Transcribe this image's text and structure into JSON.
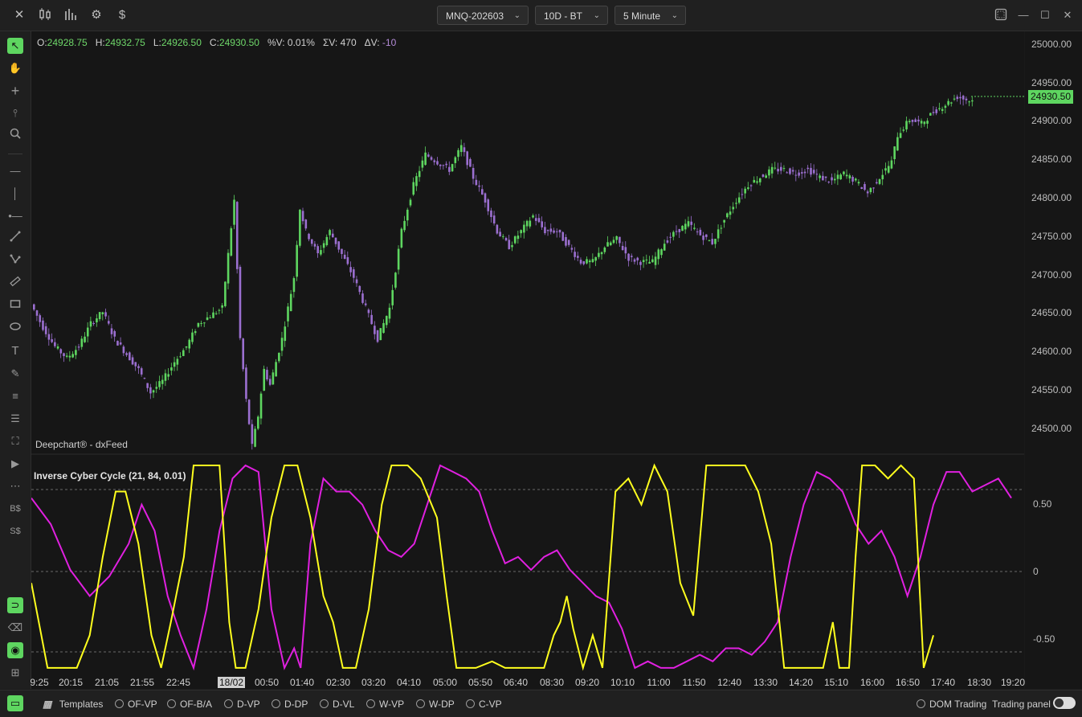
{
  "toolbar": {
    "symbol": "MNQ-202603",
    "period": "10D - BT",
    "interval": "5 Minute"
  },
  "ohlc": {
    "o_label": "O:",
    "o": "24928.75",
    "h_label": "H:",
    "h": "24932.75",
    "l_label": "L:",
    "l": "24926.50",
    "c_label": "C:",
    "c": "24930.50",
    "pv_label": "%V:",
    "pv": "0.01%",
    "sv_label": "ΣV:",
    "sv": "470",
    "dv_label": "ΔV:",
    "dv": "-10"
  },
  "watermark": "Deepchart® - dxFeed",
  "indicator_title": "Inverse Cyber Cycle (21, 84, 0.01)",
  "last_price": "24930.50",
  "price_axis": [
    "25000.00",
    "24950.00",
    "24900.00",
    "24850.00",
    "24800.00",
    "24750.00",
    "24700.00",
    "24650.00",
    "24600.00",
    "24550.00",
    "24500.00"
  ],
  "indicator_axis": [
    "0.50",
    "0",
    "-0.50"
  ],
  "time_axis": [
    "9:25",
    "20:15",
    "21:05",
    "21:55",
    "22:45",
    "18/02",
    "00:50",
    "01:40",
    "02:30",
    "03:20",
    "04:10",
    "05:00",
    "05:50",
    "06:40",
    "08:30",
    "09:20",
    "10:10",
    "11:00",
    "11:50",
    "12:40",
    "13:30",
    "14:20",
    "15:10",
    "16:00",
    "16:50",
    "17:40",
    "18:30",
    "19:20"
  ],
  "bottom": {
    "templates": "Templates",
    "profiles": [
      "OF-VP",
      "OF-B/A",
      "D-VP",
      "D-DP",
      "D-VL",
      "W-VP",
      "W-DP",
      "C-VP"
    ],
    "dom_trading": "DOM Trading",
    "trading_panel": "Trading panel"
  },
  "colors": {
    "up": "#5ed660",
    "down": "#9b6fd0",
    "cycle_yellow": "#ffff1e",
    "cycle_magenta": "#e020e0"
  },
  "sidebar_icons": [
    "cursor-icon",
    "hand-icon",
    "crosshair-icon",
    "magnet-pointer-icon",
    "zoom-icon",
    "horizontal-line-icon",
    "vertical-line-icon",
    "horizontal-ray-icon",
    "trend-line-icon",
    "path-icon",
    "ruler-icon",
    "rectangle-icon",
    "ellipse-icon",
    "text-icon",
    "pencil-icon",
    "fib-icon",
    "levels-icon",
    "volume-tool-icon",
    "arrow-tool-icon",
    "order-tool-icon",
    "price-tag-tool-icon",
    "dollar-tool-icon",
    "magnet-icon",
    "eraser-icon",
    "eye-icon",
    "add-layer-icon"
  ],
  "chart_data": {
    "type": "candlestick",
    "price_ylim": [
      24470,
      25020
    ],
    "indicator_ylim": [
      -0.8,
      0.8
    ],
    "indicator_levels": [
      0.6,
      0,
      -0.6
    ],
    "price_path_keypoints": [
      [
        0,
        24665
      ],
      [
        4,
        24635
      ],
      [
        8,
        24610
      ],
      [
        12,
        24595
      ],
      [
        16,
        24610
      ],
      [
        20,
        24640
      ],
      [
        24,
        24655
      ],
      [
        28,
        24620
      ],
      [
        32,
        24600
      ],
      [
        36,
        24580
      ],
      [
        40,
        24550
      ],
      [
        44,
        24565
      ],
      [
        48,
        24590
      ],
      [
        52,
        24610
      ],
      [
        56,
        24640
      ],
      [
        60,
        24650
      ],
      [
        64,
        24660
      ],
      [
        66,
        24730
      ],
      [
        68,
        24800
      ],
      [
        70,
        24620
      ],
      [
        72,
        24540
      ],
      [
        74,
        24480
      ],
      [
        76,
        24520
      ],
      [
        78,
        24580
      ],
      [
        80,
        24560
      ],
      [
        84,
        24620
      ],
      [
        88,
        24700
      ],
      [
        90,
        24790
      ],
      [
        92,
        24760
      ],
      [
        96,
        24730
      ],
      [
        100,
        24760
      ],
      [
        104,
        24730
      ],
      [
        108,
        24700
      ],
      [
        112,
        24660
      ],
      [
        116,
        24620
      ],
      [
        120,
        24660
      ],
      [
        124,
        24760
      ],
      [
        128,
        24820
      ],
      [
        132,
        24860
      ],
      [
        136,
        24850
      ],
      [
        140,
        24840
      ],
      [
        144,
        24870
      ],
      [
        148,
        24830
      ],
      [
        152,
        24800
      ],
      [
        156,
        24760
      ],
      [
        160,
        24740
      ],
      [
        164,
        24760
      ],
      [
        168,
        24780
      ],
      [
        172,
        24760
      ],
      [
        176,
        24760
      ],
      [
        180,
        24740
      ],
      [
        184,
        24720
      ],
      [
        188,
        24720
      ],
      [
        192,
        24740
      ],
      [
        196,
        24750
      ],
      [
        200,
        24725
      ],
      [
        204,
        24720
      ],
      [
        208,
        24720
      ],
      [
        212,
        24745
      ],
      [
        216,
        24760
      ],
      [
        220,
        24770
      ],
      [
        224,
        24755
      ],
      [
        228,
        24745
      ],
      [
        232,
        24775
      ],
      [
        236,
        24800
      ],
      [
        240,
        24820
      ],
      [
        244,
        24830
      ],
      [
        248,
        24840
      ],
      [
        252,
        24840
      ],
      [
        256,
        24835
      ],
      [
        260,
        24840
      ],
      [
        264,
        24830
      ],
      [
        268,
        24825
      ],
      [
        272,
        24835
      ],
      [
        276,
        24825
      ],
      [
        280,
        24810
      ],
      [
        284,
        24830
      ],
      [
        288,
        24850
      ],
      [
        290,
        24885
      ],
      [
        294,
        24905
      ],
      [
        298,
        24900
      ],
      [
        302,
        24915
      ],
      [
        306,
        24925
      ],
      [
        310,
        24935
      ],
      [
        314,
        24930
      ]
    ],
    "cycle_yellow": [
      [
        0,
        -0.1
      ],
      [
        5,
        -0.75
      ],
      [
        10,
        -0.75
      ],
      [
        14,
        -0.75
      ],
      [
        18,
        -0.5
      ],
      [
        22,
        0.1
      ],
      [
        26,
        0.6
      ],
      [
        29,
        0.6
      ],
      [
        33,
        0.2
      ],
      [
        37,
        -0.5
      ],
      [
        40,
        -0.75
      ],
      [
        43,
        -0.4
      ],
      [
        47,
        0.1
      ],
      [
        50,
        0.8
      ],
      [
        55,
        0.8
      ],
      [
        58,
        0.8
      ],
      [
        61,
        -0.4
      ],
      [
        63,
        -0.75
      ],
      [
        66,
        -0.75
      ],
      [
        70,
        -0.3
      ],
      [
        74,
        0.4
      ],
      [
        78,
        0.8
      ],
      [
        82,
        0.8
      ],
      [
        86,
        0.4
      ],
      [
        90,
        -0.2
      ],
      [
        93,
        -0.4
      ],
      [
        96,
        -0.75
      ],
      [
        100,
        -0.75
      ],
      [
        104,
        -0.3
      ],
      [
        108,
        0.5
      ],
      [
        111,
        0.8
      ],
      [
        116,
        0.8
      ],
      [
        120,
        0.7
      ],
      [
        125,
        0.4
      ],
      [
        128,
        -0.2
      ],
      [
        131,
        -0.75
      ],
      [
        137,
        -0.75
      ],
      [
        142,
        -0.7
      ],
      [
        146,
        -0.75
      ],
      [
        150,
        -0.75
      ],
      [
        154,
        -0.75
      ],
      [
        158,
        -0.75
      ],
      [
        161,
        -0.5
      ],
      [
        163,
        -0.4
      ],
      [
        165,
        -0.2
      ],
      [
        167,
        -0.45
      ],
      [
        170,
        -0.75
      ],
      [
        173,
        -0.5
      ],
      [
        176,
        -0.75
      ],
      [
        180,
        0.6
      ],
      [
        184,
        0.7
      ],
      [
        188,
        0.5
      ],
      [
        192,
        0.8
      ],
      [
        196,
        0.6
      ],
      [
        200,
        -0.1
      ],
      [
        204,
        -0.35
      ],
      [
        208,
        0.8
      ],
      [
        212,
        0.8
      ],
      [
        216,
        0.8
      ],
      [
        220,
        0.8
      ],
      [
        224,
        0.6
      ],
      [
        228,
        0.2
      ],
      [
        232,
        -0.75
      ],
      [
        236,
        -0.75
      ],
      [
        240,
        -0.75
      ],
      [
        244,
        -0.75
      ],
      [
        247,
        -0.4
      ],
      [
        249,
        -0.75
      ],
      [
        252,
        -0.75
      ],
      [
        254,
        0.1
      ],
      [
        256,
        0.8
      ],
      [
        260,
        0.8
      ],
      [
        264,
        0.7
      ],
      [
        268,
        0.8
      ],
      [
        272,
        0.7
      ],
      [
        275,
        -0.75
      ],
      [
        278,
        -0.5
      ]
    ],
    "cycle_magenta": [
      [
        0,
        0.55
      ],
      [
        6,
        0.35
      ],
      [
        12,
        0.0
      ],
      [
        18,
        -0.2
      ],
      [
        24,
        -0.05
      ],
      [
        30,
        0.2
      ],
      [
        34,
        0.5
      ],
      [
        38,
        0.3
      ],
      [
        42,
        -0.2
      ],
      [
        46,
        -0.5
      ],
      [
        50,
        -0.75
      ],
      [
        54,
        -0.3
      ],
      [
        58,
        0.3
      ],
      [
        62,
        0.7
      ],
      [
        66,
        0.8
      ],
      [
        70,
        0.75
      ],
      [
        74,
        -0.3
      ],
      [
        78,
        -0.75
      ],
      [
        81,
        -0.6
      ],
      [
        83,
        -0.75
      ],
      [
        86,
        0.2
      ],
      [
        90,
        0.7
      ],
      [
        94,
        0.6
      ],
      [
        98,
        0.6
      ],
      [
        102,
        0.5
      ],
      [
        106,
        0.3
      ],
      [
        110,
        0.15
      ],
      [
        114,
        0.1
      ],
      [
        118,
        0.2
      ],
      [
        122,
        0.5
      ],
      [
        126,
        0.8
      ],
      [
        130,
        0.75
      ],
      [
        134,
        0.7
      ],
      [
        138,
        0.6
      ],
      [
        142,
        0.3
      ],
      [
        146,
        0.05
      ],
      [
        150,
        0.1
      ],
      [
        154,
        0.0
      ],
      [
        158,
        0.1
      ],
      [
        162,
        0.15
      ],
      [
        166,
        0.0
      ],
      [
        170,
        -0.1
      ],
      [
        174,
        -0.2
      ],
      [
        178,
        -0.25
      ],
      [
        182,
        -0.45
      ],
      [
        186,
        -0.75
      ],
      [
        190,
        -0.7
      ],
      [
        194,
        -0.75
      ],
      [
        198,
        -0.75
      ],
      [
        202,
        -0.7
      ],
      [
        206,
        -0.65
      ],
      [
        210,
        -0.7
      ],
      [
        214,
        -0.6
      ],
      [
        218,
        -0.6
      ],
      [
        222,
        -0.65
      ],
      [
        226,
        -0.55
      ],
      [
        230,
        -0.4
      ],
      [
        234,
        0.1
      ],
      [
        238,
        0.5
      ],
      [
        242,
        0.75
      ],
      [
        246,
        0.7
      ],
      [
        250,
        0.6
      ],
      [
        254,
        0.35
      ],
      [
        258,
        0.2
      ],
      [
        262,
        0.3
      ],
      [
        266,
        0.1
      ],
      [
        270,
        -0.2
      ],
      [
        274,
        0.1
      ],
      [
        278,
        0.5
      ],
      [
        282,
        0.75
      ],
      [
        286,
        0.75
      ],
      [
        290,
        0.6
      ],
      [
        294,
        0.65
      ],
      [
        298,
        0.7
      ],
      [
        302,
        0.55
      ]
    ]
  }
}
